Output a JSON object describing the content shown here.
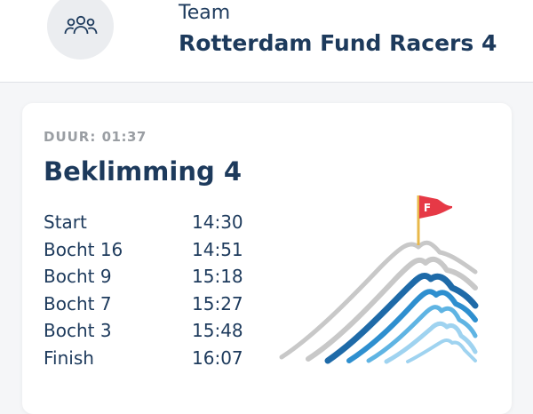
{
  "header": {
    "team_label": "Team",
    "team_name": "Rotterdam Fund Racers 4",
    "avatar_icon": "team-group-icon"
  },
  "climb": {
    "duration_label": "DUUR:",
    "duration_value": "01:37",
    "title": "Beklimming 4",
    "segments": [
      {
        "name": "Start",
        "time": "14:30"
      },
      {
        "name": "Bocht 16",
        "time": "14:51"
      },
      {
        "name": "Bocht 9",
        "time": "15:18"
      },
      {
        "name": "Bocht 7",
        "time": "15:27"
      },
      {
        "name": "Bocht 3",
        "time": "15:48"
      },
      {
        "name": "Finish",
        "time": "16:07"
      }
    ],
    "illustration": {
      "icon": "mountain-finish-flag-icon",
      "flag_letter": "F",
      "colors": {
        "flag": "#e63946",
        "pole": "#e8b84a",
        "grey": "#c8c8c8",
        "blue_dark": "#1e6aa8",
        "blue_mid": "#2e8fcf",
        "blue_light": "#5fb4e3",
        "blue_pale": "#9fd3f0"
      }
    }
  }
}
